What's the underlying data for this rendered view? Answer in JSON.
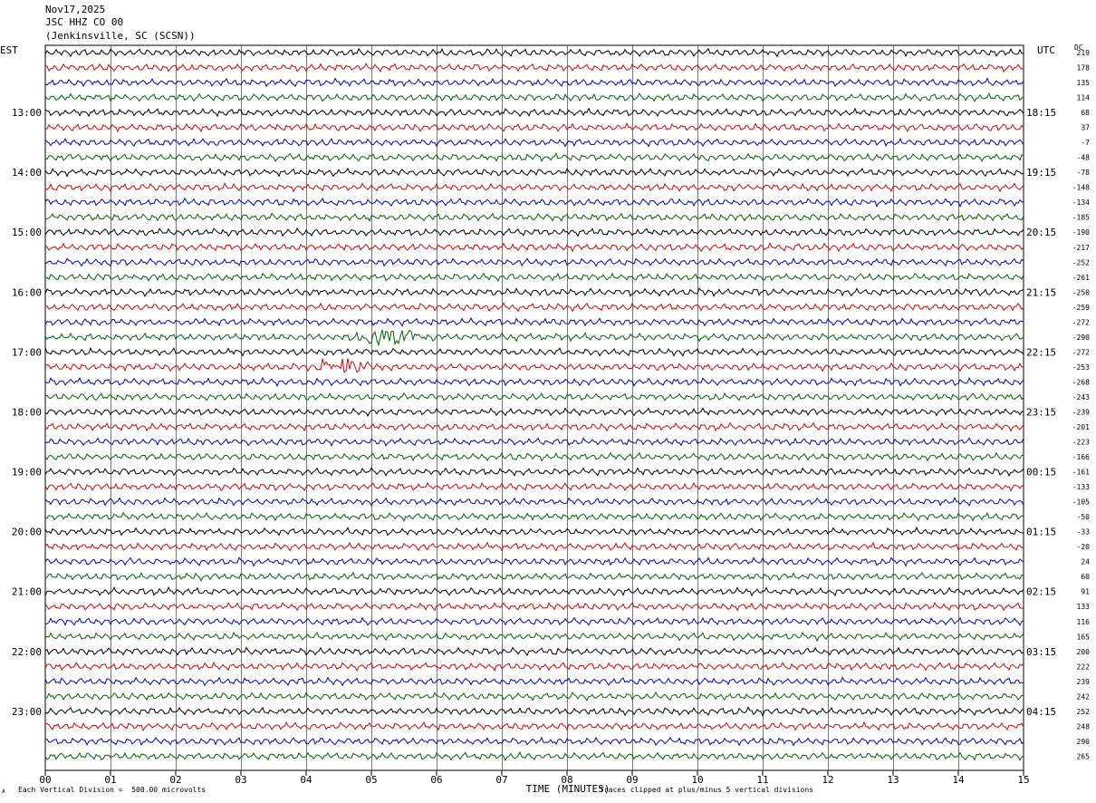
{
  "header": {
    "date": "Nov17,2025",
    "station": "JSC HHZ CO 00",
    "location": "(Jenkinsville, SC (SCSN))"
  },
  "left_tz": "EST",
  "right_tz": "UTC",
  "dc_label": "DC",
  "footer": {
    "scale": "Each Vertical Division =  500.00 microvolts",
    "clip": "Traces clipped at plus/minus 5 vertical divisions",
    "corner_mark": "A"
  },
  "colors": [
    "#000000",
    "#e00000",
    "#0000cc",
    "#006400"
  ],
  "chart_data": {
    "type": "line",
    "title": "",
    "xlabel": "TIME (MINUTES)",
    "ylabel": "",
    "x_ticks": [
      "00",
      "01",
      "02",
      "03",
      "04",
      "05",
      "06",
      "07",
      "08",
      "09",
      "10",
      "11",
      "12",
      "13",
      "14",
      "15"
    ],
    "xlim": [
      0,
      15
    ],
    "trace_count": 48,
    "left_hour_labels": [
      {
        "trace": 4,
        "label": "13:00"
      },
      {
        "trace": 8,
        "label": "14:00"
      },
      {
        "trace": 12,
        "label": "15:00"
      },
      {
        "trace": 16,
        "label": "16:00"
      },
      {
        "trace": 20,
        "label": "17:00"
      },
      {
        "trace": 24,
        "label": "18:00"
      },
      {
        "trace": 28,
        "label": "19:00"
      },
      {
        "trace": 32,
        "label": "20:00"
      },
      {
        "trace": 36,
        "label": "21:00"
      },
      {
        "trace": 40,
        "label": "22:00"
      },
      {
        "trace": 44,
        "label": "23:00"
      }
    ],
    "right_hour_labels": [
      {
        "trace": 4,
        "label": "18:15"
      },
      {
        "trace": 8,
        "label": "19:15"
      },
      {
        "trace": 12,
        "label": "20:15"
      },
      {
        "trace": 16,
        "label": "21:15"
      },
      {
        "trace": 20,
        "label": "22:15"
      },
      {
        "trace": 24,
        "label": "23:15"
      },
      {
        "trace": 28,
        "label": "00:15"
      },
      {
        "trace": 32,
        "label": "01:15"
      },
      {
        "trace": 36,
        "label": "02:15"
      },
      {
        "trace": 40,
        "label": "03:15"
      },
      {
        "trace": 44,
        "label": "04:15"
      }
    ],
    "dc_offsets": [
      "219",
      "178",
      "135",
      "114",
      "68",
      "37",
      "-7",
      "-48",
      "-78",
      "-148",
      "-134",
      "-185",
      "-190",
      "-217",
      "-252",
      "-261",
      "-250",
      "-259",
      "-272",
      "-290",
      "-272",
      "-253",
      "-268",
      "-243",
      "-239",
      "-201",
      "-223",
      "-166",
      "-161",
      "-133",
      "-105",
      "-50",
      "-33",
      "-20",
      "24",
      "60",
      "91",
      "133",
      "116",
      "165",
      "200",
      "222",
      "239",
      "242",
      "252",
      "248",
      "290",
      "265"
    ],
    "events": [
      {
        "trace": 19,
        "start_min": 4.6,
        "end_min": 6.3
      },
      {
        "trace": 21,
        "start_min": 4.0,
        "end_min": 5.4
      }
    ]
  }
}
